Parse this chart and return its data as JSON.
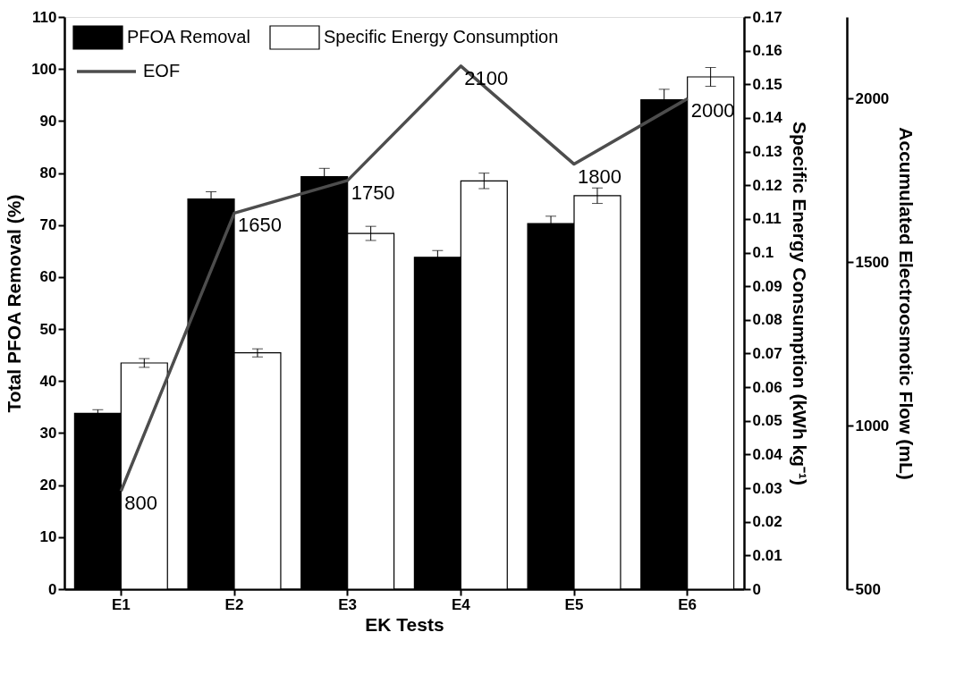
{
  "chart_data": {
    "type": "bar",
    "xlabel": "EK Tests",
    "ylabel": "Total PFOA Removal (%)",
    "y2label": "Specific Energy Consumption (kWh kg⁻¹)",
    "y3label": "Accumulated Electroosmotic Flow (mL)",
    "categories": [
      "E1",
      "E2",
      "E3",
      "E4",
      "E5",
      "E6"
    ],
    "ylim": [
      0,
      110
    ],
    "yticks": [
      0,
      10,
      20,
      30,
      40,
      50,
      60,
      70,
      80,
      90,
      100,
      110
    ],
    "y2lim": [
      0,
      0.17
    ],
    "y2ticks": [
      0,
      0.01,
      0.02,
      0.03,
      0.04,
      0.05,
      0.06,
      0.07,
      0.08,
      0.09,
      0.1,
      0.11,
      0.12,
      0.13,
      0.14,
      0.15,
      0.16,
      0.17
    ],
    "y3lim": [
      500,
      2250
    ],
    "y3ticks": [
      500,
      1000,
      1500,
      2000
    ],
    "legend": "top left",
    "grid": false,
    "series": [
      {
        "name": "PFOA Removal",
        "color": "#000000",
        "values": [
          33.8,
          75.0,
          79.3,
          63.8,
          70.3,
          94.1
        ],
        "errors": [
          0.7,
          1.4,
          1.6,
          1.3,
          1.4,
          2.0
        ]
      },
      {
        "name": "Specific Energy Consumption",
        "color": "#ffffff",
        "axis": "y2",
        "values": [
          0.0672,
          0.0702,
          0.1057,
          0.1213,
          0.1169,
          0.1522
        ],
        "errors": [
          0.0013,
          0.0012,
          0.0021,
          0.0023,
          0.0023,
          0.0028
        ]
      },
      {
        "name": "EOF",
        "type": "line",
        "axis": "y3",
        "color": "#4d4d4d",
        "marker": "none",
        "line_style": "solid",
        "values": [
          800,
          1650,
          1750,
          2100,
          1800,
          2000
        ],
        "value_labels": [
          "800",
          "1650",
          "1750",
          "2100",
          "1800",
          "2000"
        ]
      }
    ]
  }
}
